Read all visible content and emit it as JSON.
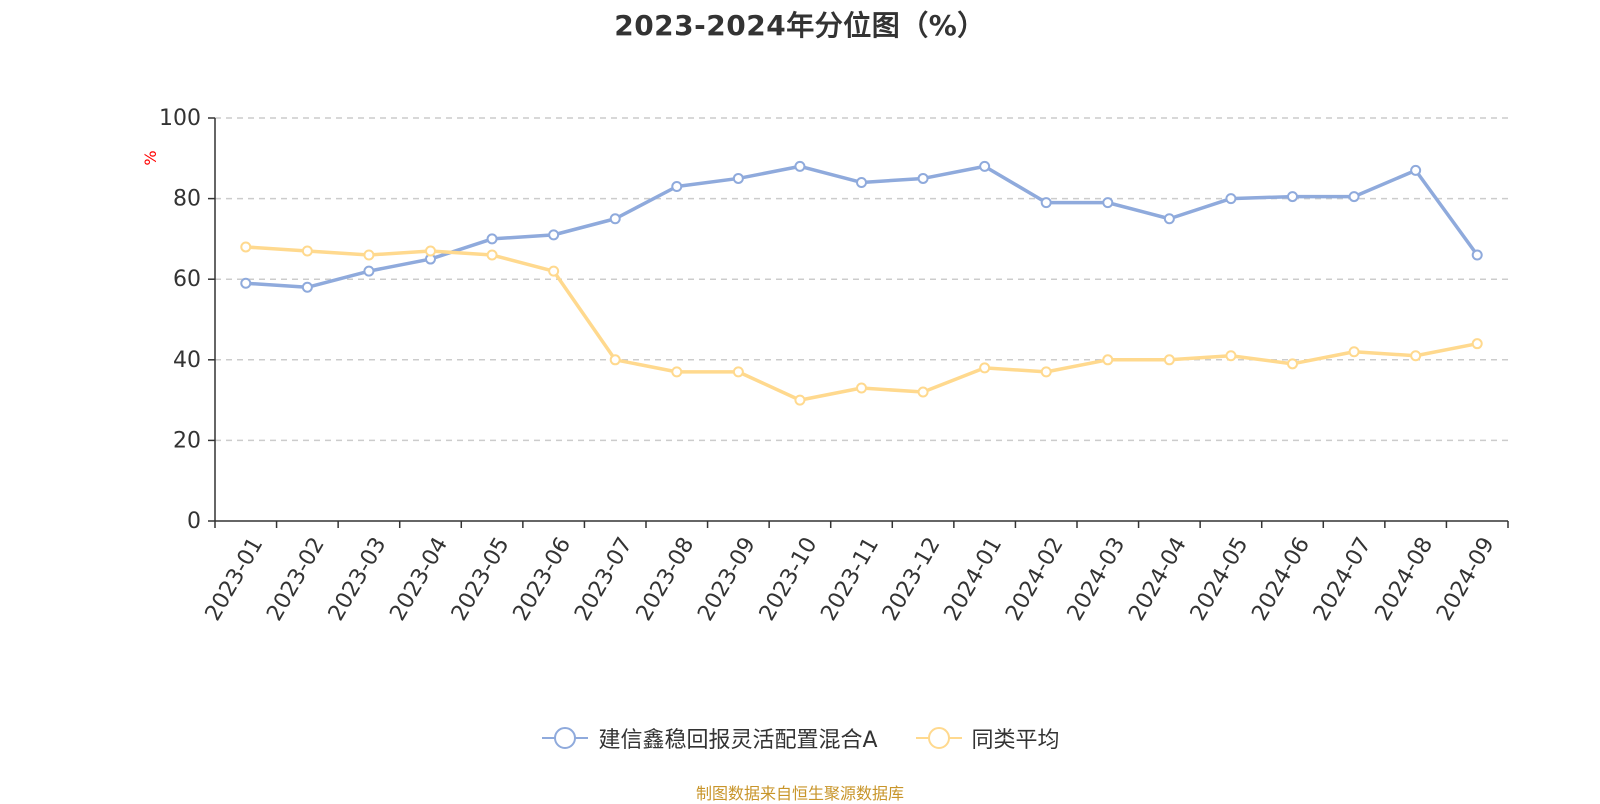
{
  "chart_data": {
    "type": "line",
    "title": "2023-2024年分位图（%）",
    "ylabel": "%",
    "xlabel": "",
    "ylim": [
      0,
      100
    ],
    "yticks": [
      0,
      20,
      40,
      60,
      80,
      100
    ],
    "grid": true,
    "legend_position": "bottom",
    "categories": [
      "2023-01",
      "2023-02",
      "2023-03",
      "2023-04",
      "2023-05",
      "2023-06",
      "2023-07",
      "2023-08",
      "2023-09",
      "2023-10",
      "2023-11",
      "2023-12",
      "2024-01",
      "2024-02",
      "2024-03",
      "2024-04",
      "2024-05",
      "2024-06",
      "2024-07",
      "2024-08",
      "2024-09"
    ],
    "series": [
      {
        "name": "建信鑫稳回报灵活配置混合A",
        "color": "#8faadc",
        "values": [
          59,
          58,
          62,
          65,
          70,
          71,
          75,
          83,
          85,
          88,
          84,
          85,
          88,
          79,
          79,
          75,
          80,
          80.5,
          80.5,
          87,
          66
        ]
      },
      {
        "name": "同类平均",
        "color": "#ffd98e",
        "values": [
          68,
          67,
          66,
          67,
          66,
          62,
          40,
          37,
          37,
          30,
          33,
          32,
          38,
          37,
          40,
          40,
          41,
          39,
          42,
          41,
          44
        ]
      }
    ]
  },
  "source_note": "制图数据来自恒生聚源数据库"
}
